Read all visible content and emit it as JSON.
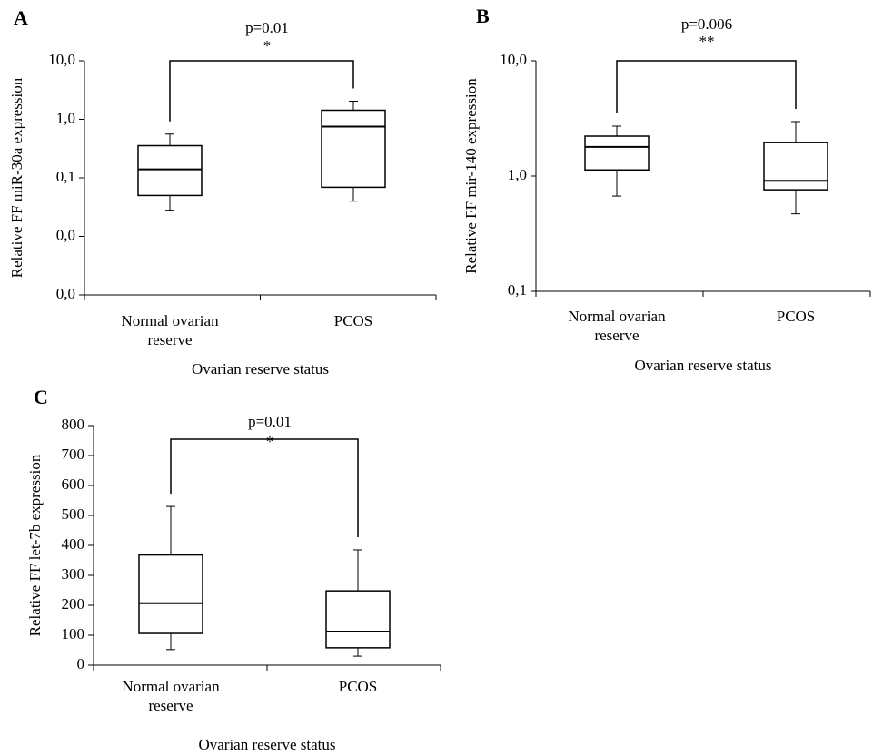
{
  "chart_data": [
    {
      "type": "box",
      "panel_label": "A",
      "annotation": "p=0.01",
      "significance": "*",
      "y_label": "Relative FF miR-30a expression",
      "x_label": "Ovarian reserve status",
      "categories": [
        "Normal ovarian reserve",
        "PCOS"
      ],
      "color": "#000000",
      "boxes": [
        {
          "whisker_low": 0.028,
          "q1": 0.05,
          "median": 0.14,
          "q3": 0.355,
          "whisker_high": 0.56
        },
        {
          "whisker_low": 0.04,
          "q1": 0.069,
          "median": 0.75,
          "q3": 1.43,
          "whisker_high": 2.04
        }
      ],
      "log_scale": true,
      "ylim": [
        0.001,
        10
      ],
      "yticks": [
        {
          "value": 0.001,
          "label": "0,0"
        },
        {
          "value": 0.01,
          "label": "0,0"
        },
        {
          "value": 0.1,
          "label": "0,1"
        },
        {
          "value": 1,
          "label": "1,0"
        },
        {
          "value": 10,
          "label": "10,0"
        }
      ]
    },
    {
      "type": "box",
      "panel_label": "B",
      "annotation": "p=0.006",
      "significance": "**",
      "y_label": "Relative FF mir-140 expression",
      "x_label": "Ovarian reserve status",
      "categories": [
        "Normal ovarian reserve",
        "PCOS"
      ],
      "color": "#000000",
      "boxes": [
        {
          "whisker_low": 0.67,
          "q1": 1.13,
          "median": 1.79,
          "q3": 2.22,
          "whisker_high": 2.71
        },
        {
          "whisker_low": 0.47,
          "q1": 0.76,
          "median": 0.91,
          "q3": 1.95,
          "whisker_high": 2.97
        }
      ],
      "log_scale": true,
      "ylim": [
        0.1,
        10
      ],
      "yticks": [
        {
          "value": 0.1,
          "label": "0,1"
        },
        {
          "value": 1,
          "label": "1,0"
        },
        {
          "value": 10,
          "label": "10,0"
        }
      ]
    },
    {
      "type": "box",
      "panel_label": "C",
      "annotation": "p=0.01",
      "significance": "*",
      "y_label": "Relative FF let-7b expression",
      "x_label": "Ovarian reserve status",
      "categories": [
        "Normal ovarian reserve",
        "PCOS"
      ],
      "color": "#000000",
      "boxes": [
        {
          "whisker_low": 52,
          "q1": 106,
          "median": 207,
          "q3": 368,
          "whisker_high": 530
        },
        {
          "whisker_low": 30,
          "q1": 58,
          "median": 112,
          "q3": 248,
          "whisker_high": 385
        }
      ],
      "log_scale": false,
      "ylim": [
        0,
        800
      ],
      "yticks": [
        0,
        100,
        200,
        300,
        400,
        500,
        600,
        700,
        800
      ]
    }
  ]
}
